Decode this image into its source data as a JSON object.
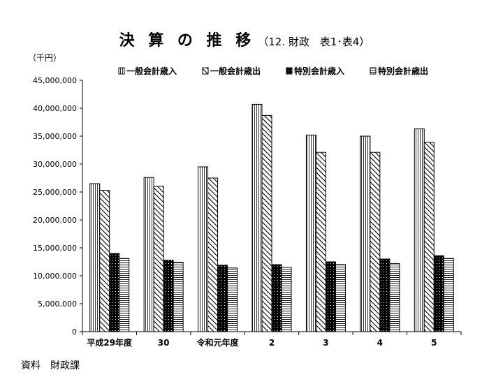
{
  "title": "決 算 の 推 移",
  "subtitle": "（12. 財政　表1･表4）",
  "unit": "（千円）",
  "source": "資料　財政課",
  "chart_data": {
    "type": "bar",
    "categories": [
      "平成29年度",
      "30",
      "令和元年度",
      "2",
      "3",
      "4",
      "5"
    ],
    "series": [
      {
        "name": "一般会計歳入",
        "pattern": "vertical-lines",
        "values": [
          26500000,
          27600000,
          29500000,
          40700000,
          35200000,
          35000000,
          36300000
        ]
      },
      {
        "name": "一般会計歳出",
        "pattern": "diagonal-hatch",
        "values": [
          25300000,
          26000000,
          27500000,
          38700000,
          32100000,
          32100000,
          33900000
        ]
      },
      {
        "name": "特別会計歳入",
        "pattern": "black-dots",
        "values": [
          14000000,
          12800000,
          11900000,
          12000000,
          12500000,
          13000000,
          13600000
        ]
      },
      {
        "name": "特別会計歳出",
        "pattern": "horizontal-lines",
        "values": [
          13100000,
          12400000,
          11400000,
          11500000,
          12000000,
          12200000,
          13100000
        ]
      }
    ],
    "ylim": [
      0,
      45000000
    ],
    "yticks": [
      0,
      5000000,
      10000000,
      15000000,
      20000000,
      25000000,
      30000000,
      35000000,
      40000000,
      45000000
    ],
    "ytick_labels": [
      "0",
      "5,000,000",
      "10,000,000",
      "15,000,000",
      "20,000,000",
      "25,000,000",
      "30,000,000",
      "35,000,000",
      "40,000,000",
      "45,000,000"
    ],
    "legend": "top",
    "grid": false
  }
}
